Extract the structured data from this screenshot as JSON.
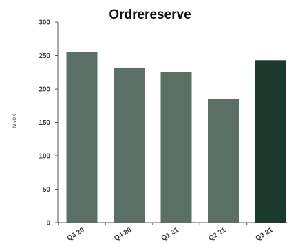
{
  "chart_data": {
    "type": "bar",
    "title": "Ordrereserve",
    "ylabel": "MNOK",
    "xlabel": "",
    "categories": [
      "Q3 20",
      "Q4 20",
      "Q1 21",
      "Q2 21",
      "Q3 21"
    ],
    "values": [
      255,
      232,
      225,
      185,
      243
    ],
    "ylim": [
      0,
      300
    ],
    "yticks": [
      "0",
      "50",
      "100",
      "150",
      "200",
      "250",
      "300"
    ],
    "grid": false,
    "legend": "none",
    "colors": {
      "bar": "#5a7065",
      "highlight_bar": "#1c3a2c",
      "axis": "#555555",
      "text": "#3a3a3a"
    },
    "highlight_index": 4
  }
}
